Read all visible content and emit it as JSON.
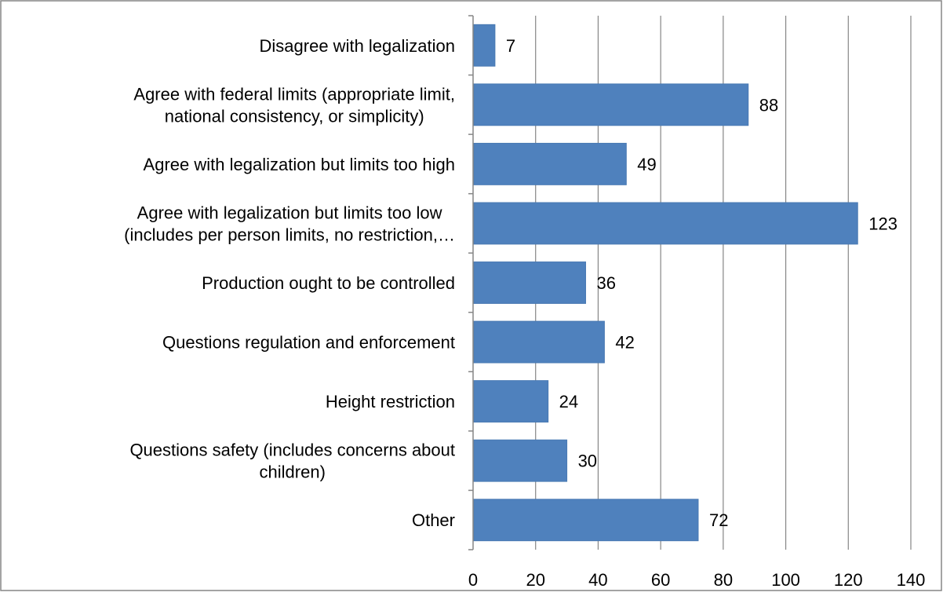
{
  "chart_data": {
    "type": "bar",
    "orientation": "horizontal",
    "categories": [
      [
        "Disagree with legalization"
      ],
      [
        "Agree with federal limits (appropriate limit,",
        "national consistency, or simplicity)"
      ],
      [
        "Agree with legalization but limits too high"
      ],
      [
        "Agree with legalization but limits too low",
        "(includes per person limits, no restriction,…"
      ],
      [
        "Production ought to be controlled"
      ],
      [
        "Questions regulation and enforcement"
      ],
      [
        "Height restriction"
      ],
      [
        "Questions safety (includes concerns about",
        "children)"
      ],
      [
        "Other"
      ]
    ],
    "values": [
      7,
      88,
      49,
      123,
      36,
      42,
      24,
      30,
      72
    ],
    "value_labels": [
      "7",
      "88",
      "49",
      "123",
      "36",
      "42",
      "24",
      "30",
      "72"
    ],
    "xlim": [
      0,
      140
    ],
    "xticks": [
      0,
      20,
      40,
      60,
      80,
      100,
      120,
      140
    ],
    "xtick_labels": [
      "0",
      "20",
      "40",
      "60",
      "80",
      "100",
      "120",
      "140"
    ],
    "grid": "vertical",
    "bar_color": "#4f81bd",
    "bar_edge_color": "#4a7ab3",
    "grid_color": "#868686",
    "frame_color": "#868686",
    "title": "",
    "xlabel": "",
    "ylabel": ""
  }
}
